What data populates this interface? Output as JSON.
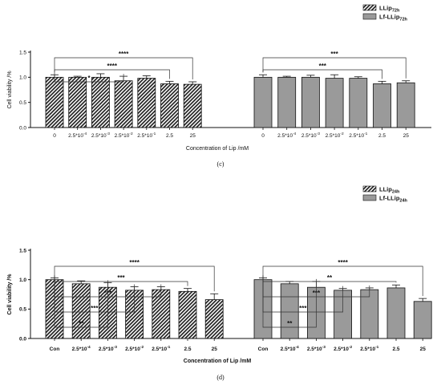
{
  "colors": {
    "hatched": "#222222",
    "gray": "#9a9a9a",
    "axis": "#111111"
  },
  "chart_data": [
    {
      "id": "c",
      "type": "bar",
      "caption": "(c)",
      "ylabel": "Cell viability /%",
      "xlabel": "Concentration of Lip /mM",
      "ylim": [
        0,
        1.5
      ],
      "yticks": [
        "0.0",
        "0.5",
        "1.0",
        "1.5"
      ],
      "grid": false,
      "legend_position": "top-right",
      "legend": [
        {
          "base": "LLip",
          "sub": "72h",
          "pattern": "hatched"
        },
        {
          "base": "Lf-LLip",
          "sub": "72h",
          "pattern": "gray"
        }
      ],
      "series": [
        {
          "pattern": "hatched",
          "categories": [
            {
              "base": "0",
              "sup": ""
            },
            {
              "base": "2.5*10",
              "sup": "-4"
            },
            {
              "base": "2.5*10",
              "sup": "-3"
            },
            {
              "base": "2.5*10",
              "sup": "-2"
            },
            {
              "base": "2.5*10",
              "sup": "-1"
            },
            {
              "base": "2.5",
              "sup": ""
            },
            {
              "base": "25",
              "sup": ""
            }
          ],
          "values": [
            1.0,
            1.0,
            1.0,
            0.93,
            0.98,
            0.87,
            0.86
          ],
          "errors": [
            0.05,
            0.02,
            0.07,
            0.09,
            0.05,
            0.05,
            0.05
          ],
          "significance": [
            {
              "to": 6,
              "label": "****"
            },
            {
              "to": 5,
              "label": "****"
            },
            {
              "to": 3,
              "label": "*"
            }
          ]
        },
        {
          "pattern": "gray",
          "categories": [
            {
              "base": "0",
              "sup": ""
            },
            {
              "base": "2.5*10",
              "sup": "-4"
            },
            {
              "base": "2.5*10",
              "sup": "-3"
            },
            {
              "base": "2.5*10",
              "sup": "-2"
            },
            {
              "base": "2.5*10",
              "sup": "-1"
            },
            {
              "base": "2.5",
              "sup": ""
            },
            {
              "base": "25",
              "sup": ""
            }
          ],
          "values": [
            1.0,
            1.0,
            1.0,
            0.98,
            0.98,
            0.87,
            0.89
          ],
          "errors": [
            0.05,
            0.02,
            0.04,
            0.07,
            0.03,
            0.05,
            0.04
          ],
          "significance": [
            {
              "to": 6,
              "label": "***"
            },
            {
              "to": 5,
              "label": "***"
            }
          ]
        }
      ]
    },
    {
      "id": "d",
      "type": "bar",
      "caption": "(d)",
      "ylabel": "Cell viability /%",
      "xlabel": "Concentration of Lip /mM",
      "ylim": [
        0,
        1.5
      ],
      "yticks": [
        "0.0",
        "0.5",
        "1.0",
        "1.5"
      ],
      "grid": false,
      "legend_position": "top-right",
      "legend": [
        {
          "base": "LLip",
          "sub": "24h",
          "pattern": "hatched"
        },
        {
          "base": "Lf-LLip",
          "sub": "24h",
          "pattern": "gray"
        }
      ],
      "series": [
        {
          "pattern": "hatched",
          "categories": [
            {
              "base": "Con",
              "sup": ""
            },
            {
              "base": "2.5*10",
              "sup": "-4"
            },
            {
              "base": "2.5*10",
              "sup": "-3"
            },
            {
              "base": "2.5*10",
              "sup": "-2"
            },
            {
              "base": "2.5*10",
              "sup": "-1"
            },
            {
              "base": "2.5",
              "sup": ""
            },
            {
              "base": "25",
              "sup": ""
            }
          ],
          "values": [
            1.0,
            0.93,
            0.87,
            0.82,
            0.83,
            0.8,
            0.66
          ],
          "errors": [
            0.03,
            0.05,
            0.08,
            0.06,
            0.05,
            0.05,
            0.1
          ],
          "significance": [
            {
              "to": 6,
              "label": "****"
            },
            {
              "to": 5,
              "label": "***"
            },
            {
              "to": 4,
              "label": "***"
            },
            {
              "to": 3,
              "label": "***"
            },
            {
              "to": 2,
              "label": "**"
            }
          ]
        },
        {
          "pattern": "gray",
          "categories": [
            {
              "base": "Con",
              "sup": ""
            },
            {
              "base": "2.5*10",
              "sup": "-4"
            },
            {
              "base": "2.5*10",
              "sup": "-3"
            },
            {
              "base": "2.5*10",
              "sup": "-2"
            },
            {
              "base": "2.5*10",
              "sup": "-1"
            },
            {
              "base": "2.5",
              "sup": ""
            },
            {
              "base": "25",
              "sup": ""
            }
          ],
          "values": [
            1.0,
            0.93,
            0.87,
            0.82,
            0.83,
            0.86,
            0.63
          ],
          "errors": [
            0.03,
            0.04,
            0.1,
            0.03,
            0.03,
            0.05,
            0.05
          ],
          "significance": [
            {
              "to": 6,
              "label": "****"
            },
            {
              "to": 5,
              "label": "**"
            },
            {
              "to": 4,
              "label": "***"
            },
            {
              "to": 3,
              "label": "***"
            },
            {
              "to": 2,
              "label": "**"
            }
          ]
        }
      ]
    }
  ]
}
